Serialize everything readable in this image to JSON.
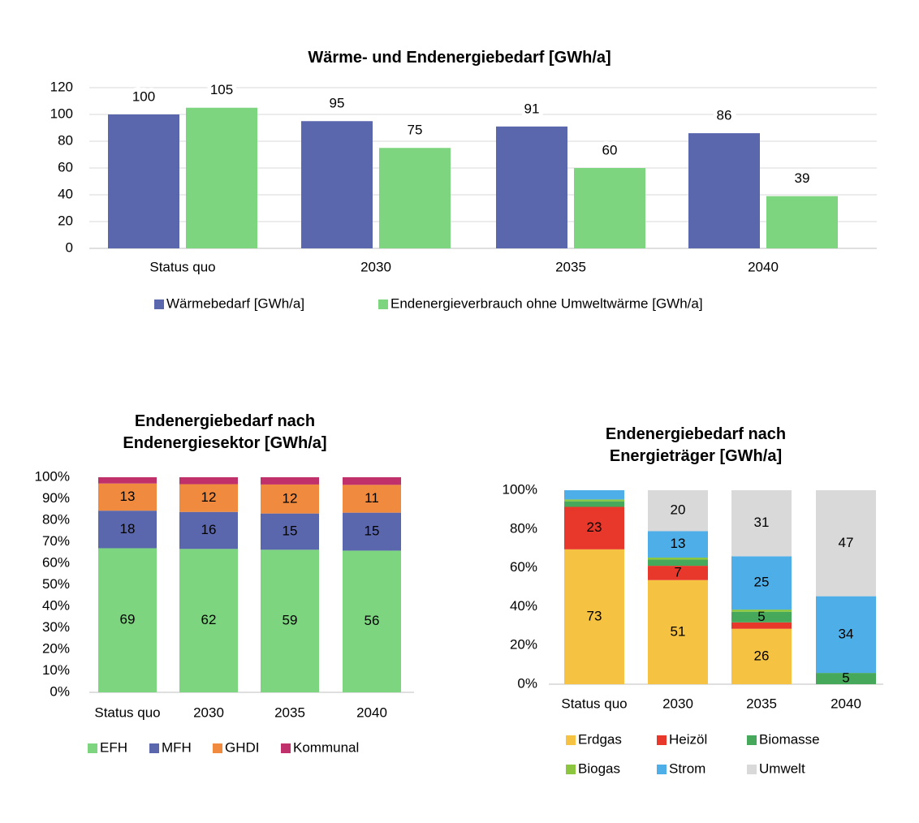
{
  "chart_data": [
    {
      "type": "grouped_bar",
      "title": "Wärme- und Endenergiebedarf [GWh/a]",
      "categories": [
        "Status quo",
        "2030",
        "2035",
        "2040"
      ],
      "series": [
        {
          "name": "Wärmebedarf [GWh/a]",
          "color": "#5b67ad",
          "values": [
            100,
            95,
            91,
            86
          ]
        },
        {
          "name": "Endenergieverbrauch ohne Umweltwärme [GWh/a]",
          "color": "#7dd67f",
          "values": [
            105,
            75,
            60,
            39
          ]
        }
      ],
      "ylim": [
        0,
        120
      ],
      "yticks": [
        0,
        20,
        40,
        60,
        80,
        100,
        120
      ],
      "grid": true,
      "legend": "bottom"
    },
    {
      "type": "stacked_percent_bar",
      "title": "Endenergiebedarf nach Endenergiesektor [GWh/a]",
      "categories": [
        "Status quo",
        "2030",
        "2035",
        "2040"
      ],
      "series": [
        {
          "name": "EFH",
          "color": "#7dd67f",
          "values": [
            69,
            62,
            59,
            56
          ]
        },
        {
          "name": "MFH",
          "color": "#5b67ad",
          "values": [
            18,
            16,
            15,
            15
          ]
        },
        {
          "name": "GHDI",
          "color": "#f08a3e",
          "values": [
            13,
            12,
            12,
            11
          ]
        },
        {
          "name": "Kommunal",
          "color": "#c0306a",
          "values": [
            3,
            3,
            3,
            3
          ]
        }
      ],
      "ylim": [
        0,
        100
      ],
      "yticks": [
        {
          "value": 0,
          "label": "0%"
        },
        {
          "value": 10,
          "label": "10%"
        },
        {
          "value": 20,
          "label": "20%"
        },
        {
          "value": 30,
          "label": "30%"
        },
        {
          "value": 40,
          "label": "40%"
        },
        {
          "value": 50,
          "label": "50%"
        },
        {
          "value": 60,
          "label": "60%"
        },
        {
          "value": 70,
          "label": "70%"
        },
        {
          "value": 80,
          "label": "80%"
        },
        {
          "value": 90,
          "label": "90%"
        },
        {
          "value": 100,
          "label": "100%"
        }
      ],
      "grid": false,
      "legend": "bottom"
    },
    {
      "type": "stacked_percent_bar",
      "title": "Endenergiebedarf nach Energieträger [GWh/a]",
      "categories": [
        "Status quo",
        "2030",
        "2035",
        "2040"
      ],
      "series": [
        {
          "name": "Erdgas",
          "color": "#f5c242",
          "values": [
            73,
            51,
            26,
            0
          ]
        },
        {
          "name": "Heizöl",
          "color": "#e8372b",
          "values": [
            23,
            7,
            3,
            0
          ]
        },
        {
          "name": "Biomasse",
          "color": "#46a85a",
          "values": [
            3,
            3,
            5,
            5
          ]
        },
        {
          "name": "Biogas",
          "color": "#8cc63f",
          "values": [
            1,
            1,
            1,
            0
          ]
        },
        {
          "name": "Strom",
          "color": "#4daee8",
          "values": [
            5,
            13,
            25,
            34
          ]
        },
        {
          "name": "Umwelt",
          "color": "#d9d9d9",
          "values": [
            0,
            20,
            31,
            47
          ]
        }
      ],
      "ylim": [
        0,
        100
      ],
      "yticks": [
        {
          "value": 0,
          "label": "0%"
        },
        {
          "value": 20,
          "label": "20%"
        },
        {
          "value": 40,
          "label": "40%"
        },
        {
          "value": 60,
          "label": "60%"
        },
        {
          "value": 80,
          "label": "80%"
        },
        {
          "value": 100,
          "label": "100%"
        }
      ],
      "grid": false,
      "legend": "bottom"
    }
  ]
}
